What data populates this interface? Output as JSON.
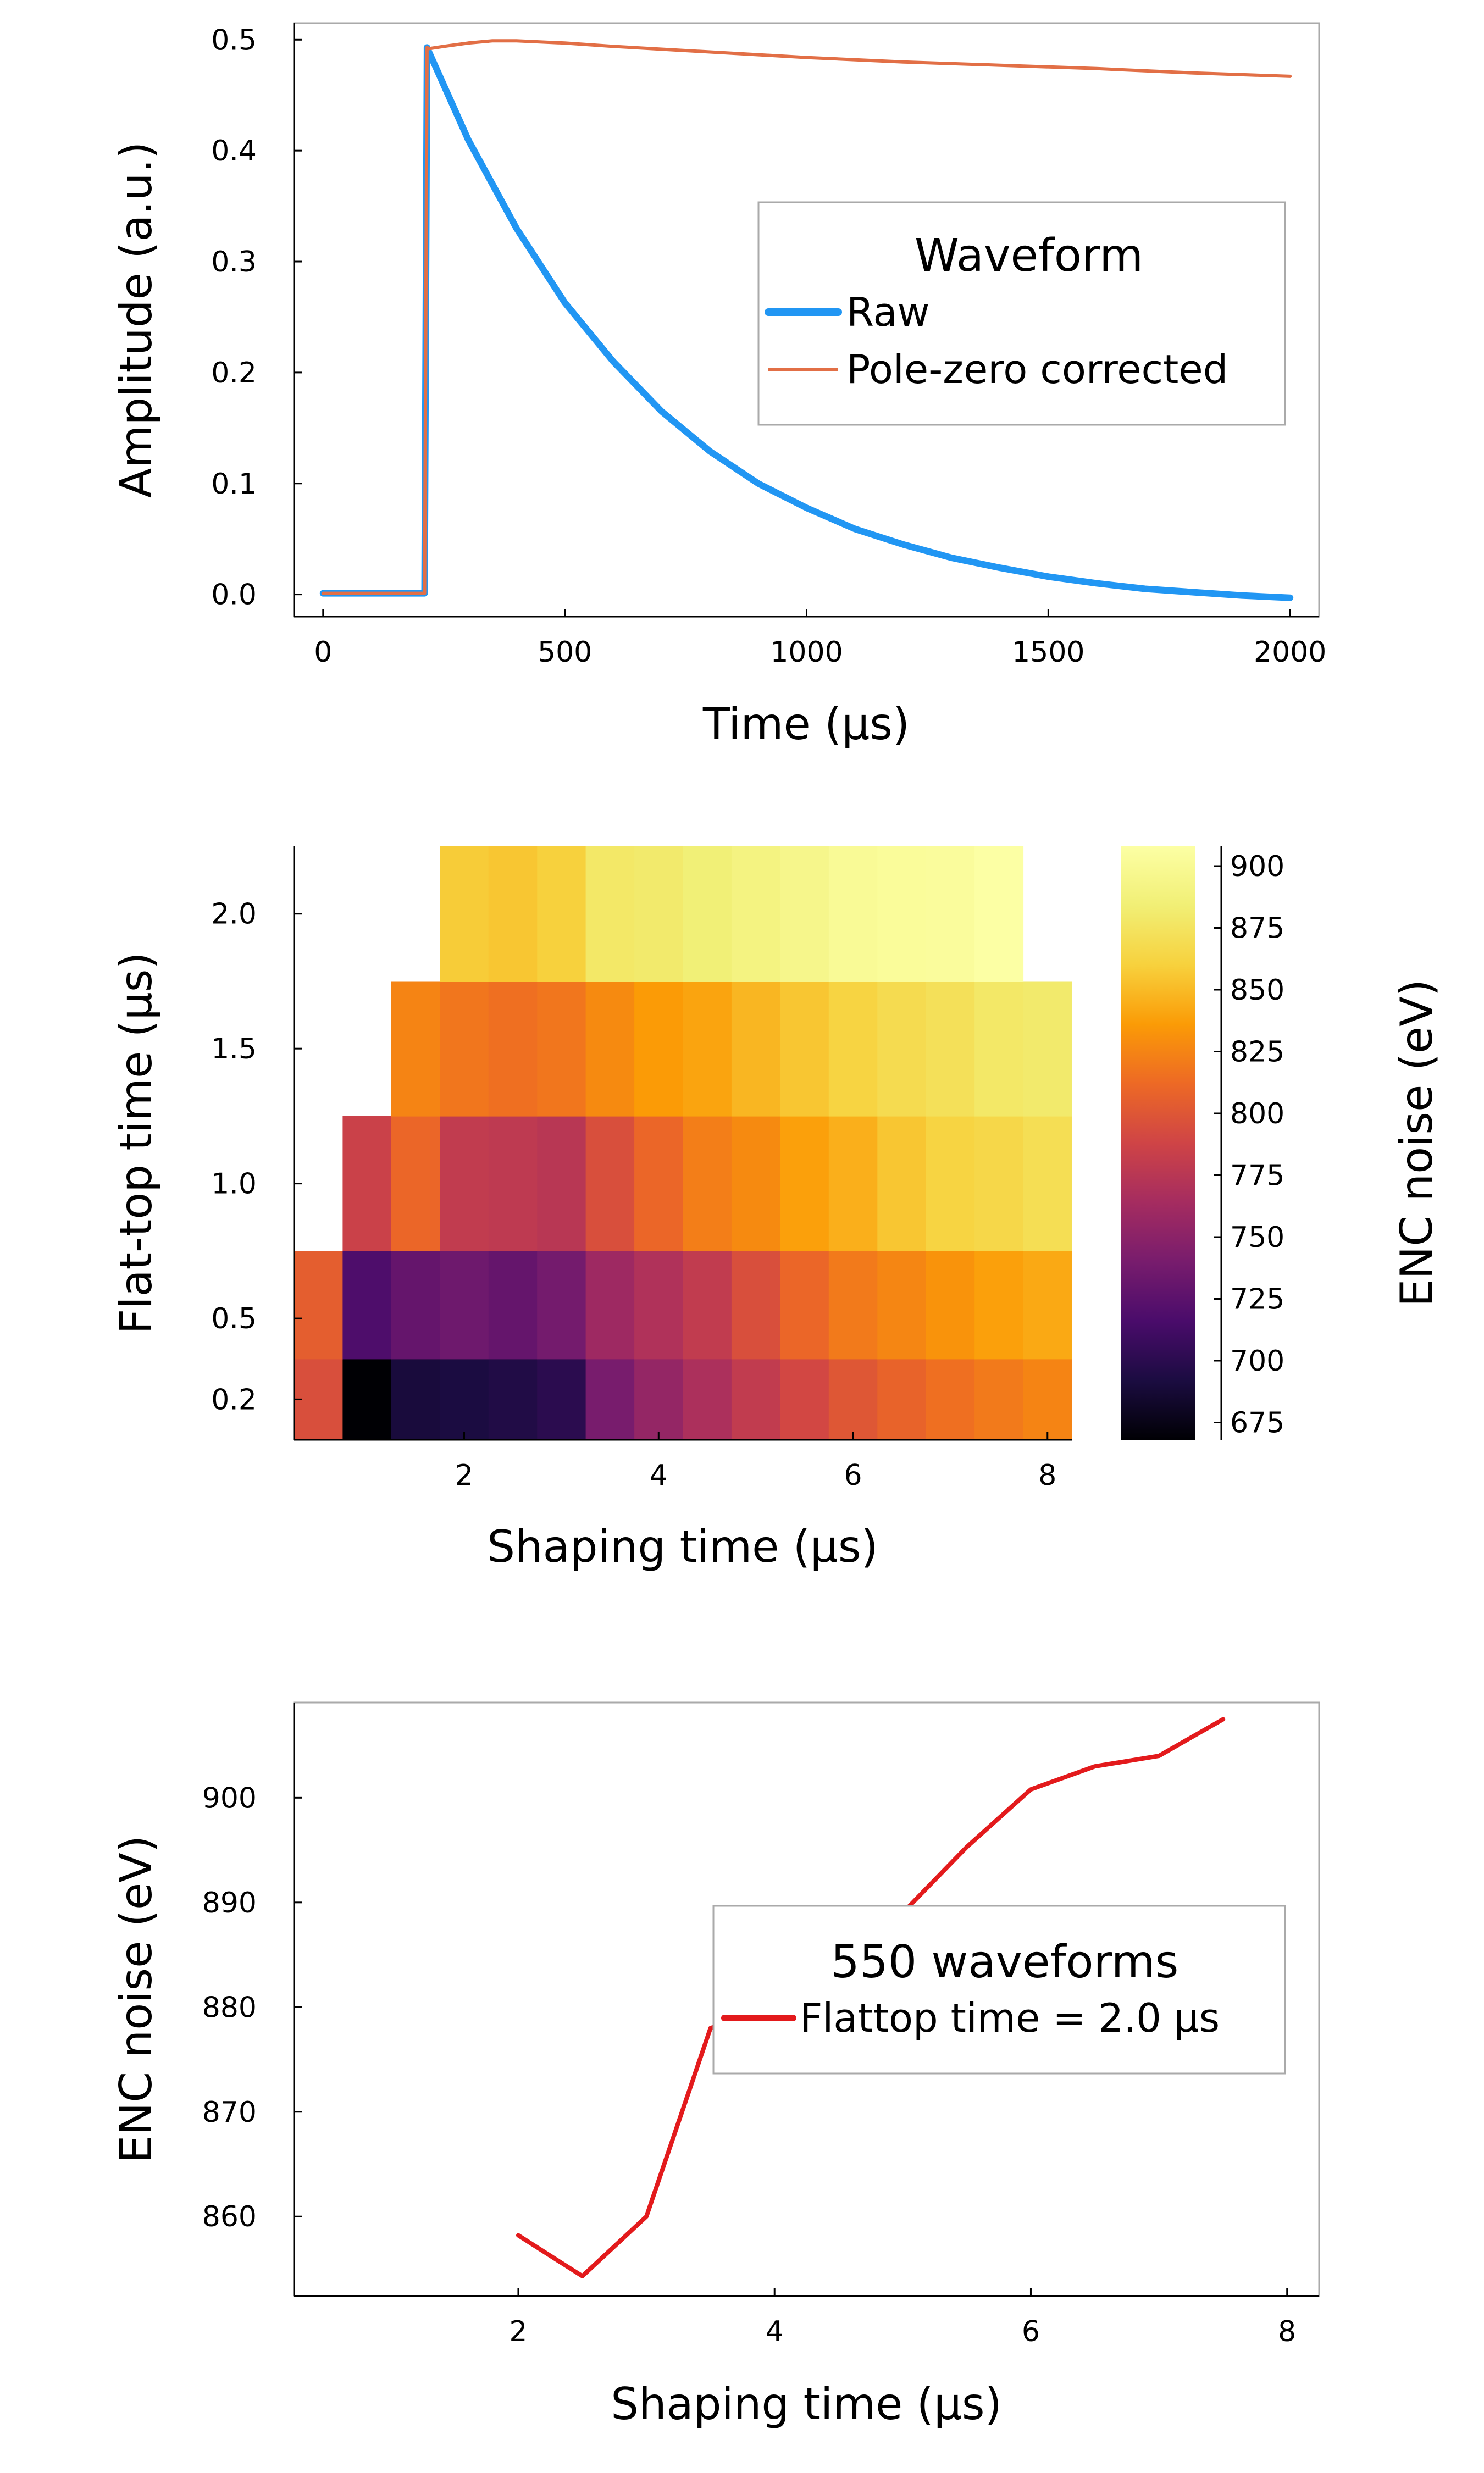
{
  "chart_data": [
    {
      "type": "line",
      "xlabel": "Time (µs)",
      "ylabel": "Amplitude (a.u.)",
      "xlim": [
        -60,
        2060
      ],
      "ylim": [
        -0.02,
        0.515
      ],
      "xticks": [
        0,
        500,
        1000,
        1500,
        2000
      ],
      "xtick_labels": [
        "0",
        "500",
        "1000",
        "1500",
        "2000"
      ],
      "yticks": [
        0.0,
        0.1,
        0.2,
        0.3,
        0.4,
        0.5
      ],
      "ytick_labels": [
        "0.0",
        "0.1",
        "0.2",
        "0.3",
        "0.4",
        "0.5"
      ],
      "grid": false,
      "legend": {
        "title": "Waveform",
        "placement": "right",
        "entries": [
          "Raw",
          "Pole-zero corrected"
        ]
      },
      "series": [
        {
          "name": "Raw",
          "color": "#2196f3",
          "x": [
            0,
            210,
            215,
            220,
            300,
            400,
            500,
            600,
            700,
            800,
            900,
            1000,
            1100,
            1200,
            1300,
            1400,
            1500,
            1600,
            1700,
            1800,
            1900,
            2000
          ],
          "y": [
            0.001,
            0.001,
            0.493,
            0.488,
            0.41,
            0.33,
            0.263,
            0.21,
            0.165,
            0.129,
            0.1,
            0.078,
            0.059,
            0.045,
            0.033,
            0.024,
            0.016,
            0.01,
            0.005,
            0.002,
            -0.001,
            -0.003
          ]
        },
        {
          "name": "Pole-zero corrected",
          "color": "#e26f46",
          "x": [
            0,
            210,
            215,
            220,
            250,
            300,
            350,
            400,
            500,
            600,
            800,
            1000,
            1200,
            1400,
            1600,
            1800,
            2000
          ],
          "y": [
            0.001,
            0.001,
            0.493,
            0.492,
            0.494,
            0.497,
            0.499,
            0.499,
            0.497,
            0.494,
            0.489,
            0.484,
            0.48,
            0.477,
            0.474,
            0.47,
            0.467
          ]
        }
      ]
    },
    {
      "type": "heatmap",
      "xlabel": "Shaping time (µs)",
      "ylabel": "Flat-top time (µs)",
      "xticks": [
        2,
        4,
        6,
        8
      ],
      "xtick_labels": [
        "2",
        "4",
        "6",
        "8"
      ],
      "yticks": [
        0.2,
        0.5,
        1.0,
        1.5,
        2.0
      ],
      "ytick_labels": [
        "0.2",
        "0.5",
        "1.0",
        "1.5",
        "2.0"
      ],
      "x": [
        0.5,
        1.0,
        1.5,
        2.0,
        2.5,
        3.0,
        3.5,
        4.0,
        4.5,
        5.0,
        5.5,
        6.0,
        6.5,
        7.0,
        7.5,
        8.0
      ],
      "y": [
        0.2,
        0.5,
        1.0,
        1.5,
        2.0
      ],
      "colorbar": {
        "label": "ENC noise (eV)",
        "range": [
          668,
          908
        ],
        "colormap": "inferno",
        "ticks": [
          675,
          700,
          725,
          750,
          775,
          800,
          825,
          850,
          875,
          900
        ],
        "tick_labels": [
          "675",
          "700",
          "725",
          "750",
          "775",
          "800",
          "825",
          "850",
          "875",
          "900"
        ]
      },
      "values": [
        [
          795,
          668,
          690,
          692,
          695,
          700,
          740,
          755,
          768,
          780,
          790,
          800,
          808,
          815,
          820,
          825
        ],
        [
          805,
          718,
          730,
          735,
          730,
          738,
          760,
          770,
          780,
          795,
          810,
          820,
          826,
          832,
          838,
          842
        ],
        [
          null,
          785,
          810,
          780,
          778,
          775,
          795,
          810,
          822,
          828,
          838,
          845,
          855,
          862,
          865,
          870
        ],
        [
          null,
          null,
          825,
          818,
          815,
          818,
          828,
          836,
          840,
          848,
          855,
          862,
          868,
          872,
          878,
          880
        ],
        [
          null,
          null,
          null,
          858,
          855,
          860,
          878,
          880,
          885,
          890,
          895,
          901,
          903,
          904,
          908,
          null
        ]
      ]
    },
    {
      "type": "line",
      "xlabel": "Shaping time (µs)",
      "ylabel": "ENC noise (eV)",
      "xlim": [
        0.25,
        8.25
      ],
      "ylim": [
        852.4,
        909.1
      ],
      "xticks": [
        2,
        4,
        6,
        8
      ],
      "xtick_labels": [
        "2",
        "4",
        "6",
        "8"
      ],
      "yticks": [
        860,
        870,
        880,
        890,
        900
      ],
      "ytick_labels": [
        "860",
        "870",
        "880",
        "890",
        "900"
      ],
      "grid": false,
      "legend": {
        "title": "550 waveforms",
        "placement": "right",
        "entries": [
          "Flattop time = 2.0 µs"
        ]
      },
      "series": [
        {
          "name": "Flattop time = 2.0 µs",
          "color": "#e31a1c",
          "x": [
            2.0,
            2.5,
            3.0,
            3.5,
            4.0,
            4.5,
            5.0,
            5.5,
            6.0,
            6.5,
            7.0,
            7.5
          ],
          "y": [
            858.2,
            854.3,
            860.0,
            878.0,
            880.0,
            885.0,
            889.0,
            895.3,
            900.8,
            903.0,
            904.0,
            907.5
          ]
        }
      ]
    }
  ]
}
